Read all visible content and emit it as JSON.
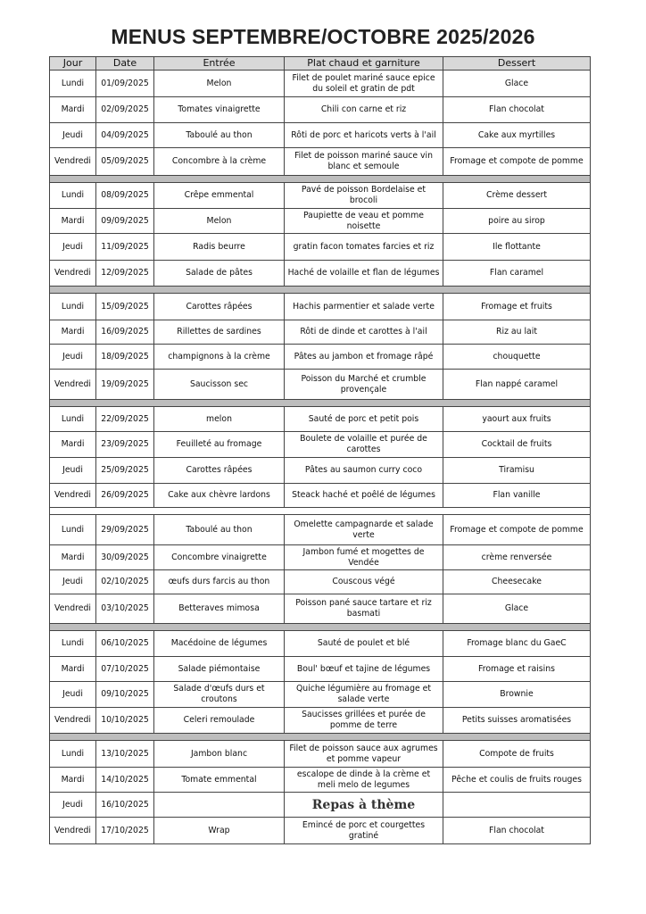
{
  "title": "MENUS  SEPTEMBRE/OCTOBRE 2025/2026",
  "headers": [
    "Jour",
    "Date",
    "Entrée",
    "Plat chaud et garniture",
    "Dessert"
  ],
  "weeks": [
    [
      [
        "Lundi",
        "01/09/2025",
        "Melon",
        "Filet de poulet mariné sauce epice du soleil et gratin de pdt",
        "Glace"
      ],
      [
        "Mardi",
        "02/09/2025",
        "Tomates vinaigrette",
        "Chili con carne et riz",
        "Flan chocolat"
      ],
      [
        "Jeudi",
        "04/09/2025",
        "Taboulé au thon",
        "Rôti de porc et haricots verts à l'ail",
        "Cake aux myrtilles"
      ],
      [
        "Vendredi",
        "05/09/2025",
        "Concombre à la crème",
        "Filet de poisson mariné sauce vin blanc et semoule",
        "Fromage et compote de pomme"
      ]
    ],
    [
      [
        "Lundi",
        "08/09/2025",
        "Crêpe emmental",
        "Pavé de poisson Bordelaise et brocoli",
        "Crème dessert"
      ],
      [
        "Mardi",
        "09/09/2025",
        "Melon",
        "Paupiette de veau et pomme noisette",
        "poire au sirop"
      ],
      [
        "Jeudi",
        "11/09/2025",
        "Radis beurre",
        "gratin facon tomates farcies et riz",
        "Ile flottante"
      ],
      [
        "Vendredi",
        "12/09/2025",
        "Salade de pâtes",
        "Haché de volaille et flan de légumes",
        "Flan caramel"
      ]
    ],
    [
      [
        "Lundi",
        "15/09/2025",
        "Carottes râpées",
        "Hachis parmentier et salade verte",
        "Fromage et fruits"
      ],
      [
        "Mardi",
        "16/09/2025",
        "Rillettes de sardines",
        "Rôti de dinde et carottes à l'ail",
        "Riz au lait"
      ],
      [
        "Jeudi",
        "18/09/2025",
        "champignons à la crème",
        "Pâtes au jambon et fromage râpé",
        "chouquette"
      ],
      [
        "Vendredi",
        "19/09/2025",
        "Saucisson sec",
        "Poisson du Marché et crumble provençale",
        "Flan nappé caramel"
      ]
    ],
    [
      [
        "Lundi",
        "22/09/2025",
        "melon",
        "Sauté de porc et petit pois",
        "yaourt aux fruits"
      ],
      [
        "Mardi",
        "23/09/2025",
        "Feuilleté au fromage",
        "Boulete de volaille et purée de carottes",
        "Cocktail de fruits"
      ],
      [
        "Jeudi",
        "25/09/2025",
        "Carottes râpées",
        "Pâtes au saumon curry coco",
        "Tiramisu"
      ],
      [
        "Vendredi",
        "26/09/2025",
        "Cake aux chèvre lardons",
        "Steack haché et poêlé de légumes",
        "Flan vanille"
      ]
    ],
    [
      [
        "Lundi",
        "29/09/2025",
        "Taboulé au thon",
        "Omelette campagnarde et salade verte",
        "Fromage et compote de pomme"
      ],
      [
        "Mardi",
        "30/09/2025",
        "Concombre vinaigrette",
        "Jambon fumé et mogettes de Vendée",
        "crème renversée"
      ],
      [
        "Jeudi",
        "02/10/2025",
        "œufs durs farcis au thon",
        "Couscous végé",
        "Cheesecake"
      ],
      [
        "Vendredi",
        "03/10/2025",
        "Betteraves mimosa",
        "Poisson pané sauce tartare et riz basmati",
        "Glace"
      ]
    ],
    [
      [
        "Lundi",
        "06/10/2025",
        "Macédoine de légumes",
        "Sauté de poulet et blé",
        "Fromage blanc du GaeC"
      ],
      [
        "Mardi",
        "07/10/2025",
        "Salade piémontaise",
        "Boul' bœuf et tajine de légumes",
        "Fromage et raisins"
      ],
      [
        "Jeudi",
        "09/10/2025",
        "Salade d'œufs durs et croutons",
        "Quiche légumière au fromage et salade verte",
        "Brownie"
      ],
      [
        "Vendredi",
        "10/10/2025",
        "Celeri remoulade",
        "Saucisses grillées et purée de pomme de terre",
        "Petits suisses aromatisées"
      ]
    ],
    [
      [
        "Lundi",
        "13/10/2025",
        "Jambon blanc",
        "Filet de poisson sauce aux agrumes et pomme vapeur",
        "Compote de fruits"
      ],
      [
        "Mardi",
        "14/10/2025",
        "Tomate emmental",
        "escalope de dinde à la crème et meli melo de legumes",
        "Pêche et coulis de fruits rouges"
      ],
      [
        "Jeudi",
        "16/10/2025",
        "",
        "Repas à thème",
        ""
      ],
      [
        "Vendredi",
        "17/10/2025",
        "Wrap",
        "Emincé de porc et courgettes gratiné",
        "Flan chocolat"
      ]
    ]
  ]
}
